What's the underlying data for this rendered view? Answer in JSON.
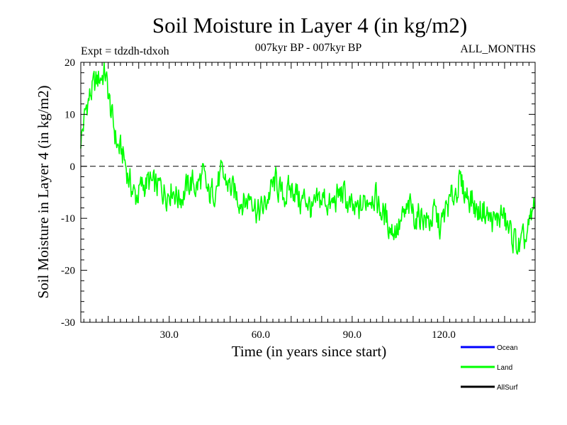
{
  "chart_data": {
    "type": "line",
    "title": "Soil Moisture in Layer 4 (in kg/m2)",
    "subtitle_left": "Expt = tdzdh-tdxoh",
    "subtitle_center": "007kyr BP - 007kyr BP",
    "subtitle_right": "ALL_MONTHS",
    "xlabel": "Time (in years since start)",
    "ylabel": "Soil Moisture in Layer 4 (in kg/m2)",
    "xlim": [
      1,
      150
    ],
    "ylim": [
      -30,
      20
    ],
    "xticks": [
      30,
      60,
      90,
      120
    ],
    "xtick_labels": [
      "30.0",
      "60.0",
      "90.0",
      "120.0"
    ],
    "yticks": [
      -30,
      -20,
      -10,
      0,
      10,
      20
    ],
    "ytick_labels": [
      "-30",
      "-20",
      "-10",
      "0",
      "10",
      "20"
    ],
    "reference_line": 0,
    "legend": [
      {
        "name": "Ocean",
        "color": "#0000ff"
      },
      {
        "name": "Land",
        "color": "#00ff00"
      },
      {
        "name": "AllSurf",
        "color": "#000000"
      }
    ],
    "series": [
      {
        "name": "Land",
        "color": "#00ff00",
        "x": [
          1,
          3,
          5,
          7,
          9,
          11,
          13,
          15,
          17,
          19,
          21,
          23,
          25,
          27,
          29,
          31,
          33,
          35,
          37,
          39,
          41,
          43,
          45,
          47,
          49,
          51,
          53,
          55,
          57,
          59,
          61,
          63,
          65,
          67,
          69,
          71,
          73,
          75,
          77,
          79,
          81,
          83,
          85,
          87,
          89,
          91,
          93,
          95,
          97,
          99,
          101,
          103,
          105,
          107,
          109,
          111,
          113,
          115,
          117,
          119,
          121,
          123,
          125,
          127,
          129,
          131,
          133,
          135,
          137,
          139,
          141,
          143,
          145,
          147,
          149,
          150
        ],
        "values": [
          5,
          12,
          15,
          17,
          18,
          10,
          4,
          2,
          -3,
          -6,
          -4,
          -3,
          -4,
          -4,
          -5,
          -4,
          -6,
          -5,
          -3,
          -4,
          -2,
          -6,
          -4,
          -2,
          -3,
          -5,
          -6,
          -7,
          -5,
          -9,
          -8,
          -5,
          -3,
          -6,
          -5,
          -4,
          -7,
          -6,
          -9,
          -7,
          -6,
          -8,
          -6,
          -5,
          -8,
          -9,
          -8,
          -6,
          -5,
          -8,
          -10,
          -12,
          -12,
          -10,
          -8,
          -10,
          -9,
          -11,
          -9,
          -12,
          -8,
          -6,
          -3,
          -5,
          -6,
          -9,
          -8,
          -10,
          -11,
          -9,
          -12,
          -14,
          -16,
          -14,
          -10,
          -6
        ]
      }
    ]
  }
}
